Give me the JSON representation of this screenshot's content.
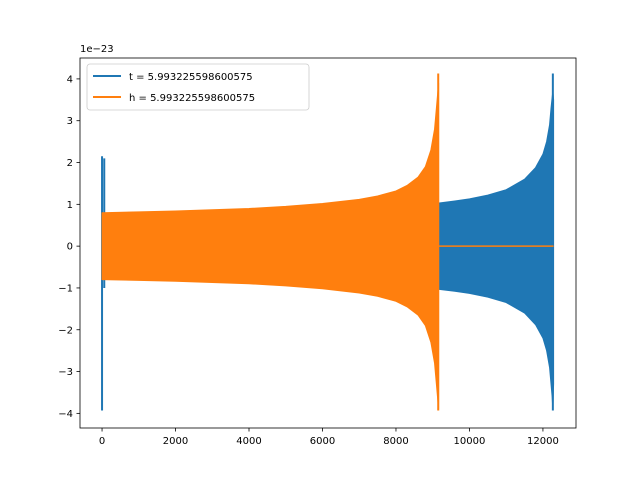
{
  "chart_data": {
    "type": "line",
    "title": "",
    "xlabel": "",
    "ylabel": "",
    "offset_text": "1e−23",
    "xlim": [
      -600,
      12900
    ],
    "ylim": [
      -4.35,
      4.5
    ],
    "xticks": [
      0,
      2000,
      4000,
      6000,
      8000,
      10000,
      12000
    ],
    "xtick_labels": [
      "0",
      "2000",
      "4000",
      "6000",
      "8000",
      "10000",
      "12000"
    ],
    "yticks": [
      -4,
      -3,
      -2,
      -1,
      0,
      1,
      2,
      3,
      4
    ],
    "ytick_labels": [
      "−4",
      "−3",
      "−2",
      "−1",
      "0",
      "1",
      "2",
      "3",
      "4"
    ],
    "grid": false,
    "legend_position": "top-left",
    "series": [
      {
        "name": "t = 5.993225598600575",
        "color": "#1f77b4",
        "envelope": {
          "x": [
            9150,
            9600,
            10000,
            10500,
            11000,
            11500,
            11800,
            12000,
            12100,
            12180,
            12220,
            12250,
            12270,
            12290
          ],
          "upper": [
            1.03,
            1.08,
            1.13,
            1.22,
            1.35,
            1.6,
            1.88,
            2.2,
            2.5,
            2.9,
            3.3,
            3.55,
            3.7,
            3.5
          ],
          "lower": [
            -1.03,
            -1.08,
            -1.13,
            -1.22,
            -1.35,
            -1.6,
            -1.88,
            -2.2,
            -2.5,
            -2.9,
            -3.3,
            -3.6,
            -3.9,
            -3.3
          ]
        },
        "spikes": [
          {
            "x": 0,
            "min": -3.93,
            "max": 2.15
          },
          {
            "x": 60,
            "min": -1.0,
            "max": 2.1
          },
          {
            "x": 12270,
            "min": -3.93,
            "max": 4.13
          }
        ]
      },
      {
        "name": "h = 5.993225598600575",
        "color": "#ff7f0e",
        "envelope": {
          "x": [
            0,
            1000,
            2000,
            3000,
            4000,
            5000,
            6000,
            7000,
            7500,
            8000,
            8300,
            8600,
            8800,
            8950,
            9050,
            9100,
            9140,
            9160
          ],
          "upper": [
            0.8,
            0.82,
            0.84,
            0.87,
            0.9,
            0.95,
            1.02,
            1.12,
            1.2,
            1.32,
            1.45,
            1.65,
            1.9,
            2.3,
            2.8,
            3.3,
            3.7,
            3.9
          ],
          "lower": [
            -0.8,
            -0.82,
            -0.84,
            -0.87,
            -0.9,
            -0.95,
            -1.02,
            -1.12,
            -1.2,
            -1.32,
            -1.45,
            -1.65,
            -1.9,
            -2.3,
            -2.8,
            -3.3,
            -3.7,
            -3.9
          ]
        },
        "spikes": [
          {
            "x": 9150,
            "min": -3.93,
            "max": 4.13
          }
        ],
        "flat": {
          "x": [
            9160,
            12290
          ],
          "y": 0
        }
      }
    ]
  }
}
